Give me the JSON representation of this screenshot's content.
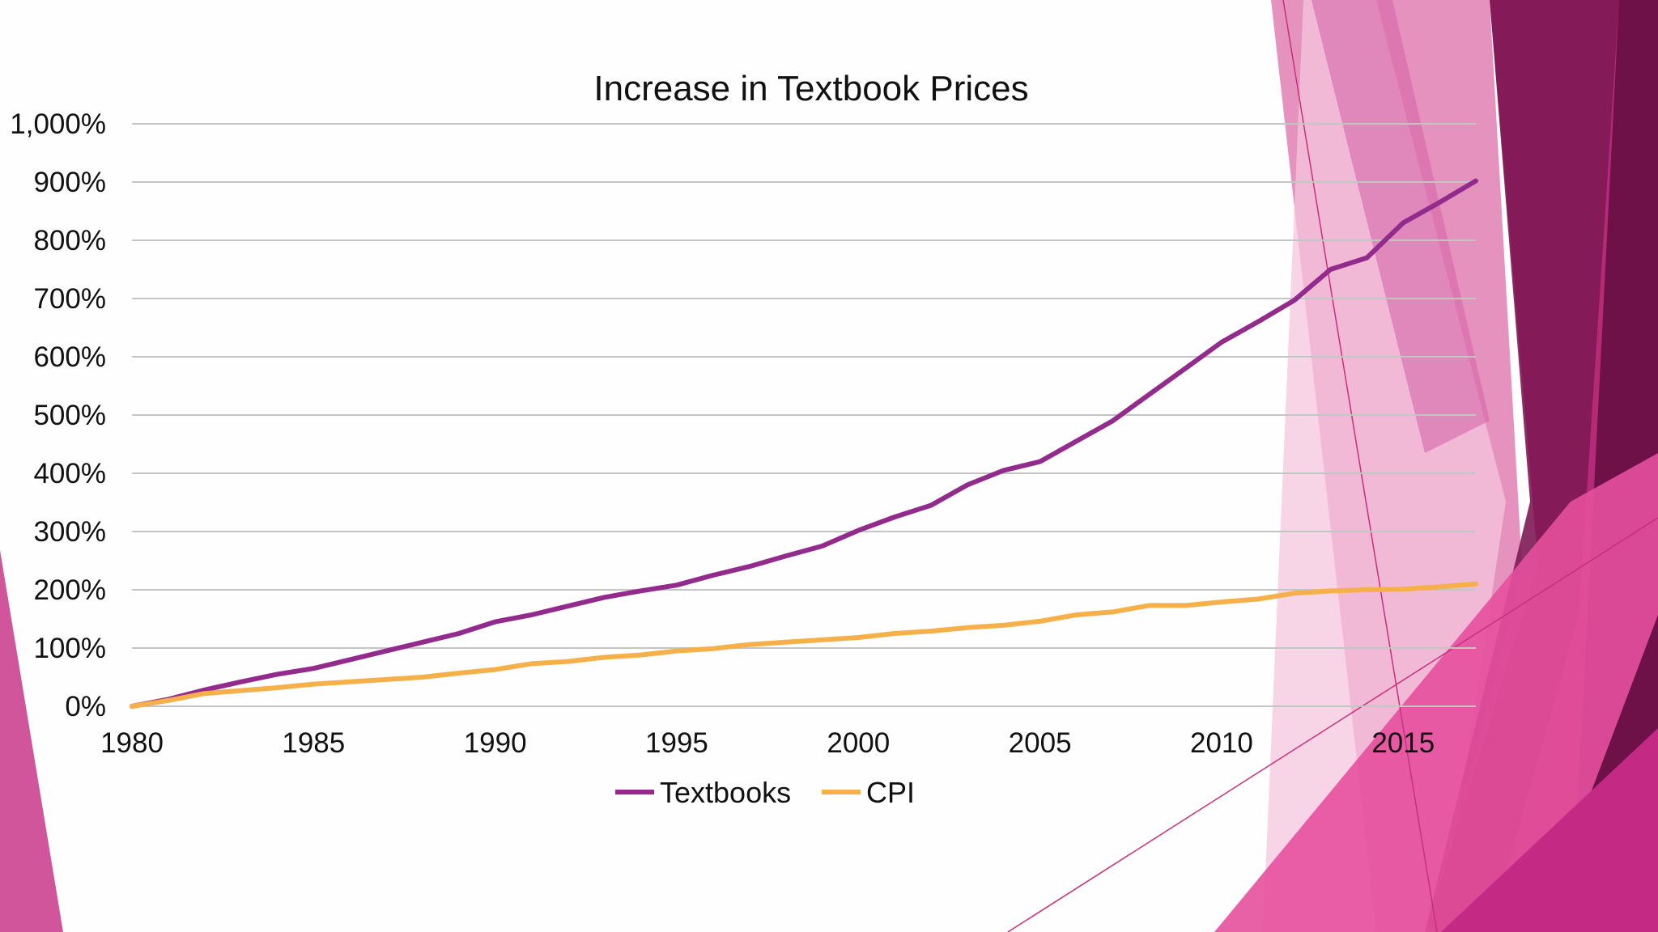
{
  "colors": {
    "textbooks": "#922b8c",
    "cpi": "#f5b04a",
    "grid": "#c4c4c4",
    "decor_dark": "#7a1650",
    "decor_mid": "#c2307f",
    "decor_light": "#e889bd",
    "decor_pale": "#f3c0dc"
  },
  "chart_data": {
    "type": "line",
    "title": "Increase in Textbook Prices",
    "xlabel": "",
    "ylabel": "",
    "xlim": [
      1980,
      2017
    ],
    "ylim": [
      0,
      1000
    ],
    "x_ticks": [
      1980,
      1985,
      1990,
      1995,
      2000,
      2005,
      2010,
      2015
    ],
    "x_tick_labels": [
      "1980",
      "1985",
      "1990",
      "1995",
      "2000",
      "2005",
      "2010",
      "2015"
    ],
    "y_ticks": [
      0,
      100,
      200,
      300,
      400,
      500,
      600,
      700,
      800,
      900,
      1000
    ],
    "y_tick_labels": [
      "0%",
      "100%",
      "200%",
      "300%",
      "400%",
      "500%",
      "600%",
      "700%",
      "800%",
      "900%",
      "1,000%"
    ],
    "grid": true,
    "legend_position": "bottom-center",
    "x": [
      1980,
      1981,
      1982,
      1983,
      1984,
      1985,
      1986,
      1987,
      1988,
      1989,
      1990,
      1991,
      1992,
      1993,
      1994,
      1995,
      1996,
      1997,
      1998,
      1999,
      2000,
      2001,
      2002,
      2003,
      2004,
      2005,
      2006,
      2007,
      2008,
      2009,
      2010,
      2011,
      2012,
      2013,
      2014,
      2015,
      2016,
      2017
    ],
    "series": [
      {
        "name": "Textbooks",
        "color_key": "textbooks",
        "values": [
          0,
          12,
          28,
          42,
          55,
          65,
          80,
          95,
          110,
          125,
          145,
          157,
          172,
          187,
          198,
          208,
          225,
          240,
          258,
          275,
          302,
          325,
          345,
          380,
          405,
          420,
          455,
          490,
          535,
          580,
          625,
          660,
          697,
          750,
          770,
          830,
          865,
          902
        ]
      },
      {
        "name": "CPI",
        "color_key": "cpi",
        "values": [
          0,
          10,
          22,
          27,
          32,
          38,
          42,
          46,
          50,
          57,
          63,
          73,
          77,
          84,
          88,
          95,
          99,
          106,
          110,
          114,
          118,
          125,
          129,
          135,
          139,
          146,
          157,
          162,
          173,
          173,
          179,
          184,
          194,
          198,
          200,
          201,
          205,
          210
        ]
      }
    ]
  }
}
